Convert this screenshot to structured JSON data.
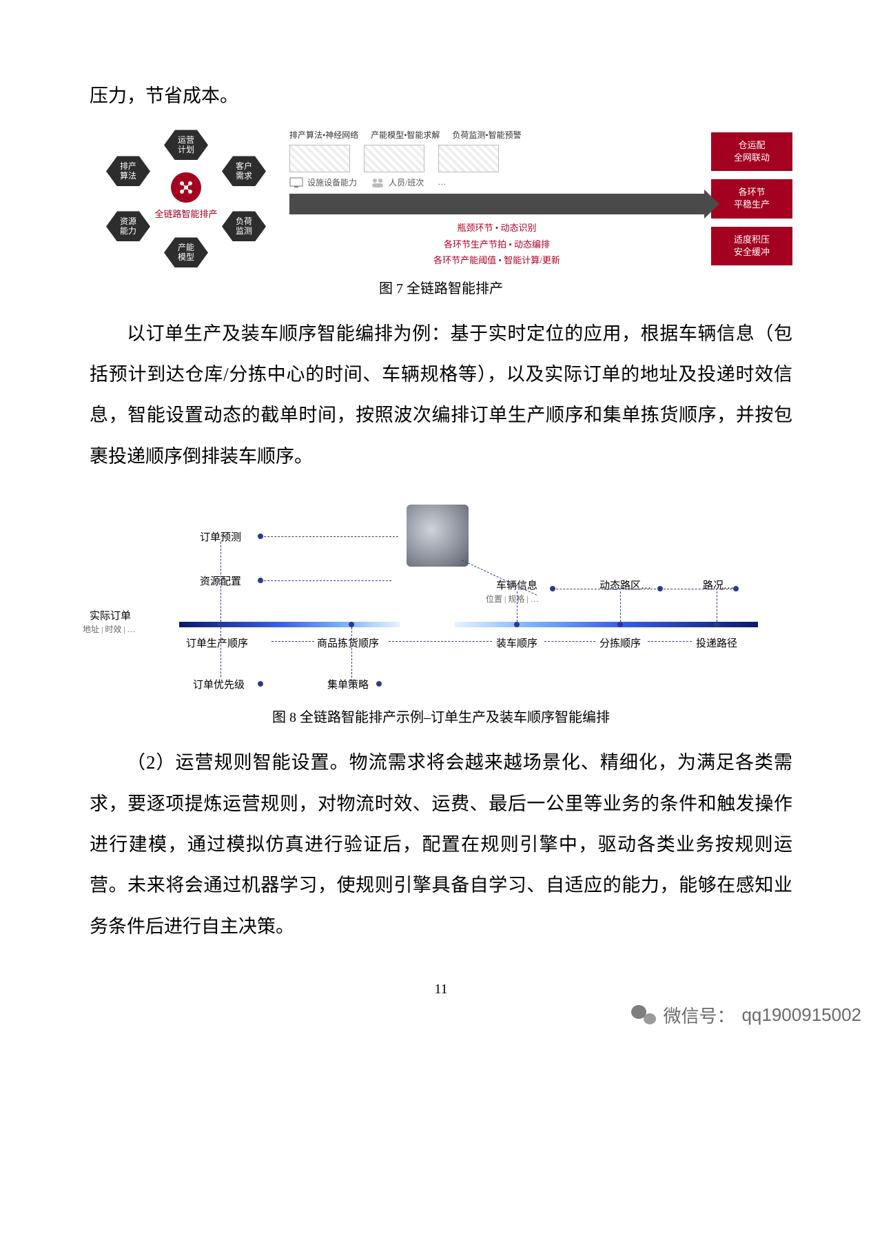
{
  "page_number": "11",
  "wechat_label": "微信号：",
  "wechat_id": "qq1900915002",
  "intro_line": "压力，节省成本。",
  "fig7": {
    "caption": "图 7  全链路智能排产",
    "center_label": "全链路智能排产",
    "hex_nodes": {
      "top": "运营\n计划",
      "tl": "排产\n算法",
      "tr": "客户\n需求",
      "bl": "资源\n能力",
      "br": "负荷\n监测",
      "bottom": "产能\n模型"
    },
    "header_items": [
      "排产算法•神经网络",
      "产能模型•智能求解",
      "负荷监测•智能预警"
    ],
    "row2_left": "设施设备能力",
    "row2_right": "人员/班次",
    "row2_dots": "…",
    "red_lines": [
      "瓶颈环节 • 动态识别",
      "各环节生产节拍 • 动态编排",
      "各环节产能阈值 • 智能计算/更新"
    ],
    "right_boxes": [
      "仓运配\n全网联动",
      "各环节\n平稳生产",
      "适度积压\n安全缓冲"
    ],
    "colors": {
      "hex_bg": "#2d2d2d",
      "accent": "#a40020",
      "arrow": "#4a4a4a",
      "red_text": "#b00028"
    }
  },
  "para2": "以订单生产及装车顺序智能编排为例：基于实时定位的应用，根据车辆信息（包括预计到达仓库/分拣中心的时间、车辆规格等），以及实际订单的地址及投递时效信息，智能设置动态的截单时间，按照波次编排订单生产顺序和集单拣货顺序，并按包裹投递顺序倒排装车顺序。",
  "fig8": {
    "caption": "图 8 全链路智能排产示例–订单生产及装车顺序智能编排",
    "left_label": "实际订单",
    "left_sub": "地址 | 时效 | …",
    "nodes": {
      "n1": "订单预测",
      "n2": "资源配置",
      "n3": "订单生产顺序",
      "n4": "订单优先级",
      "m1": "商品拣货顺序",
      "m2": "集单策略",
      "r_top1": "车辆信息",
      "r_top1_sub": "位置 | 规格 | …",
      "r_top2": "动态路区…",
      "r_top3": "路况…",
      "r1": "装车顺序",
      "r2": "分拣顺序",
      "r3": "投递路径"
    },
    "colors": {
      "bar_from": "#0d1b66",
      "bar_to": "#e8f2ff",
      "dot": "#2b3a8f"
    }
  },
  "para3": "（2）运营规则智能设置。物流需求将会越来越场景化、精细化，为满足各类需求，要逐项提炼运营规则，对物流时效、运费、最后一公里等业务的条件和触发操作进行建模，通过模拟仿真进行验证后，配置在规则引擎中，驱动各类业务按规则运营。未来将会通过机器学习，使规则引擎具备自学习、自适应的能力，能够在感知业务条件后进行自主决策。"
}
